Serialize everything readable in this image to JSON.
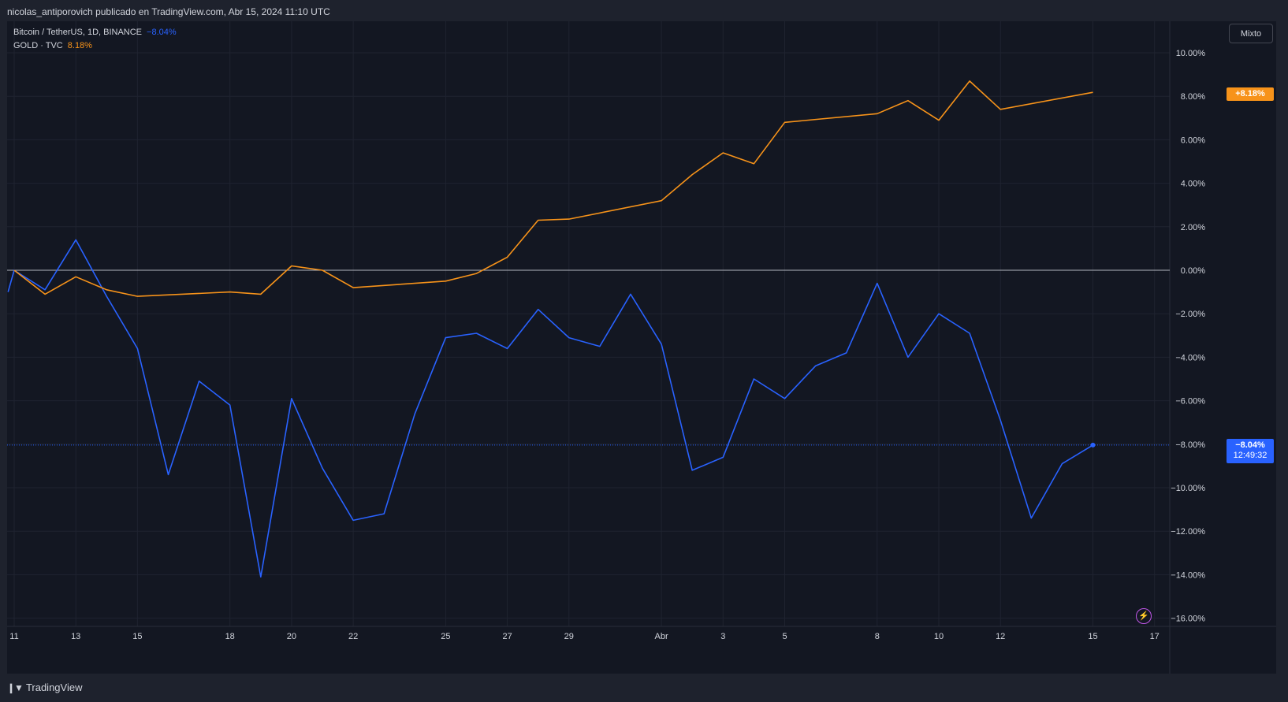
{
  "header": {
    "publisher_text": "nicolas_antiporovich publicado en TradingView.com, Abr 15, 2024 11:10 UTC"
  },
  "legend": {
    "btc_label": "Bitcoin / TetherUS, 1D, BINANCE",
    "btc_value": "−8.04%",
    "gold_label": "GOLD · TVC",
    "gold_value": "8.18%"
  },
  "scale_button": "Mixto",
  "price_tags": {
    "gold": "+8.18%",
    "btc": "−8.04%",
    "btc_countdown": "12:49:32"
  },
  "footer": {
    "logo_text": "TradingView"
  },
  "colors": {
    "background": "#131722",
    "btc": "#2962ff",
    "gold": "#f7931a",
    "grid": "#1f2330",
    "text": "#d1d4dc"
  },
  "chart_data": {
    "type": "line",
    "ylim": [
      -16,
      10
    ],
    "y_tick_values": [
      10,
      8,
      6,
      4,
      2,
      0,
      -2,
      -4,
      -6,
      -8,
      -10,
      -12,
      -14,
      -16
    ],
    "y_tick_labels": [
      "10.00%",
      "8.00%",
      "6.00%",
      "4.00%",
      "2.00%",
      "0.00%",
      "−2.00%",
      "−4.00%",
      "−6.00%",
      "−8.00%",
      "−10.00%",
      "−12.00%",
      "−14.00%",
      "−16.00%"
    ],
    "x_ticks": [
      {
        "day": 0,
        "label": "11"
      },
      {
        "day": 2,
        "label": "13"
      },
      {
        "day": 4,
        "label": "15"
      },
      {
        "day": 7,
        "label": "18"
      },
      {
        "day": 9,
        "label": "20"
      },
      {
        "day": 11,
        "label": "22"
      },
      {
        "day": 14,
        "label": "25"
      },
      {
        "day": 16,
        "label": "27"
      },
      {
        "day": 18,
        "label": "29"
      },
      {
        "day": 21,
        "label": "Abr"
      },
      {
        "day": 23,
        "label": "3"
      },
      {
        "day": 25,
        "label": "5"
      },
      {
        "day": 28,
        "label": "8"
      },
      {
        "day": 30,
        "label": "10"
      },
      {
        "day": 32,
        "label": "12"
      },
      {
        "day": 35,
        "label": "15"
      },
      {
        "day": 37,
        "label": "17"
      }
    ],
    "series": [
      {
        "name": "Bitcoin / TetherUS, 1D, BINANCE",
        "points": [
          [
            -0.2,
            -1.0
          ],
          [
            0,
            0.0
          ],
          [
            1,
            -0.9
          ],
          [
            2,
            1.4
          ],
          [
            3,
            -1.2
          ],
          [
            4,
            -3.6
          ],
          [
            5,
            -9.4
          ],
          [
            6,
            -5.1
          ],
          [
            7,
            -6.2
          ],
          [
            8,
            -14.1
          ],
          [
            9,
            -5.9
          ],
          [
            10,
            -9.1
          ],
          [
            11,
            -11.5
          ],
          [
            12,
            -11.2
          ],
          [
            13,
            -6.6
          ],
          [
            14,
            -3.1
          ],
          [
            15,
            -2.9
          ],
          [
            16,
            -3.6
          ],
          [
            17,
            -1.8
          ],
          [
            18,
            -3.1
          ],
          [
            19,
            -3.5
          ],
          [
            20,
            -1.1
          ],
          [
            21,
            -3.4
          ],
          [
            22,
            -9.2
          ],
          [
            23,
            -8.6
          ],
          [
            24,
            -5.0
          ],
          [
            25,
            -5.9
          ],
          [
            26,
            -4.4
          ],
          [
            27,
            -3.8
          ],
          [
            28,
            -0.6
          ],
          [
            29,
            -4.0
          ],
          [
            30,
            -2.0
          ],
          [
            31,
            -2.9
          ],
          [
            32,
            -6.9
          ],
          [
            33,
            -11.4
          ],
          [
            34,
            -8.9
          ],
          [
            35,
            -8.04
          ]
        ]
      },
      {
        "name": "GOLD · TVC",
        "points": [
          [
            0,
            0.0
          ],
          [
            1,
            -1.1
          ],
          [
            2,
            -0.3
          ],
          [
            3,
            -0.9
          ],
          [
            4,
            -1.2
          ],
          [
            7,
            -1.0
          ],
          [
            8,
            -1.1
          ],
          [
            9,
            0.2
          ],
          [
            10,
            0.0
          ],
          [
            11,
            -0.8
          ],
          [
            14,
            -0.5
          ],
          [
            15,
            -0.15
          ],
          [
            16,
            0.6
          ],
          [
            17,
            2.3
          ],
          [
            18,
            2.35
          ],
          [
            21,
            3.2
          ],
          [
            22,
            4.4
          ],
          [
            23,
            5.4
          ],
          [
            24,
            4.9
          ],
          [
            25,
            6.8
          ],
          [
            28,
            7.2
          ],
          [
            29,
            7.8
          ],
          [
            30,
            6.9
          ],
          [
            31,
            8.7
          ],
          [
            32,
            7.4
          ],
          [
            35,
            8.18
          ]
        ]
      }
    ],
    "zero_line": 0,
    "last_value_line": -8.04
  }
}
